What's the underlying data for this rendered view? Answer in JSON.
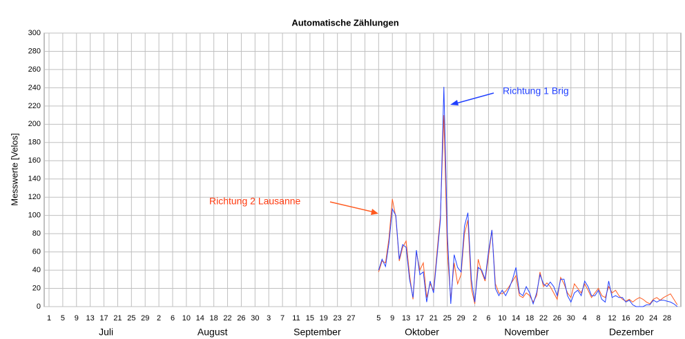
{
  "chart_data": {
    "type": "line",
    "title": "Automatische Zählungen",
    "y_label": "Messwerte [Velos]",
    "months": [
      "Juli",
      "August",
      "September",
      "Oktober",
      "November",
      "Dezember"
    ],
    "categories": [
      "1",
      null,
      null,
      null,
      "5",
      null,
      null,
      null,
      "9",
      null,
      null,
      null,
      "13",
      null,
      null,
      null,
      "17",
      null,
      null,
      null,
      "21",
      null,
      null,
      null,
      "25",
      null,
      null,
      null,
      "29",
      null,
      null,
      null,
      "2",
      null,
      null,
      null,
      "6",
      null,
      null,
      null,
      "10",
      null,
      null,
      null,
      "14",
      null,
      null,
      null,
      "18",
      null,
      null,
      null,
      "22",
      null,
      null,
      null,
      "26",
      null,
      null,
      null,
      "30",
      null,
      null,
      null,
      "3",
      null,
      null,
      null,
      "7",
      null,
      null,
      null,
      "11",
      null,
      null,
      null,
      "15",
      null,
      null,
      null,
      "19",
      null,
      null,
      null,
      "23",
      null,
      null,
      null,
      "27",
      null,
      null,
      null,
      null,
      null,
      null,
      null,
      "5",
      null,
      null,
      null,
      "9",
      null,
      null,
      null,
      "13",
      null,
      null,
      null,
      "17",
      null,
      null,
      null,
      "21",
      null,
      null,
      null,
      "25",
      null,
      null,
      null,
      "29",
      null,
      null,
      null,
      "2",
      null,
      null,
      null,
      "6",
      null,
      null,
      null,
      "10",
      null,
      null,
      null,
      "14",
      null,
      null,
      null,
      "18",
      null,
      null,
      null,
      "22",
      null,
      null,
      null,
      "26",
      null,
      null,
      null,
      "30",
      null,
      null,
      null,
      "4",
      null,
      null,
      null,
      "8",
      null,
      null,
      null,
      "12",
      null,
      null,
      null,
      "16",
      null,
      null,
      null,
      "20",
      null,
      null,
      null,
      "24",
      null,
      null,
      null,
      "28",
      null,
      null,
      null
    ],
    "series": [
      {
        "name": "Richtung 1 Brig",
        "color": "#1f3fff",
        "values": [
          null,
          null,
          null,
          null,
          null,
          null,
          null,
          null,
          null,
          null,
          null,
          null,
          null,
          null,
          null,
          null,
          null,
          null,
          null,
          null,
          null,
          null,
          null,
          null,
          null,
          null,
          null,
          null,
          null,
          null,
          null,
          null,
          null,
          null,
          null,
          null,
          null,
          null,
          null,
          null,
          null,
          null,
          null,
          null,
          null,
          null,
          null,
          null,
          null,
          null,
          null,
          null,
          null,
          null,
          null,
          null,
          null,
          null,
          null,
          null,
          null,
          null,
          null,
          null,
          null,
          null,
          null,
          null,
          null,
          null,
          null,
          null,
          null,
          null,
          null,
          null,
          null,
          null,
          null,
          null,
          null,
          null,
          null,
          null,
          null,
          null,
          null,
          null,
          null,
          null,
          null,
          null,
          null,
          null,
          null,
          null,
          40,
          52,
          44,
          70,
          107,
          100,
          52,
          68,
          65,
          30,
          10,
          62,
          35,
          38,
          5,
          28,
          15,
          55,
          95,
          241,
          80,
          3,
          57,
          43,
          38,
          88,
          103,
          30,
          5,
          43,
          40,
          30,
          60,
          84,
          20,
          12,
          18,
          12,
          20,
          30,
          43,
          15,
          12,
          22,
          15,
          3,
          15,
          35,
          25,
          22,
          27,
          22,
          12,
          30,
          30,
          12,
          5,
          15,
          18,
          12,
          28,
          22,
          12,
          12,
          18,
          8,
          5,
          28,
          10,
          12,
          10,
          10,
          5,
          7,
          2,
          0,
          0,
          0,
          2,
          2,
          7,
          5,
          7,
          7,
          6,
          5,
          3,
          0
        ]
      },
      {
        "name": "Richtung 2 Lausanne",
        "color": "#ff5a1f",
        "values": [
          null,
          null,
          null,
          null,
          null,
          null,
          null,
          null,
          null,
          null,
          null,
          null,
          null,
          null,
          null,
          null,
          null,
          null,
          null,
          null,
          null,
          null,
          null,
          null,
          null,
          null,
          null,
          null,
          null,
          null,
          null,
          null,
          null,
          null,
          null,
          null,
          null,
          null,
          null,
          null,
          null,
          null,
          null,
          null,
          null,
          null,
          null,
          null,
          null,
          null,
          null,
          null,
          null,
          null,
          null,
          null,
          null,
          null,
          null,
          null,
          null,
          null,
          null,
          null,
          null,
          null,
          null,
          null,
          null,
          null,
          null,
          null,
          null,
          null,
          null,
          null,
          null,
          null,
          null,
          null,
          null,
          null,
          null,
          null,
          null,
          null,
          null,
          null,
          null,
          null,
          null,
          null,
          null,
          null,
          null,
          null,
          38,
          50,
          48,
          75,
          118,
          98,
          50,
          65,
          72,
          35,
          8,
          60,
          40,
          48,
          10,
          25,
          18,
          60,
          100,
          210,
          60,
          8,
          48,
          25,
          35,
          80,
          95,
          20,
          3,
          52,
          38,
          28,
          55,
          84,
          25,
          15,
          14,
          17,
          22,
          28,
          34,
          12,
          10,
          15,
          12,
          5,
          12,
          38,
          22,
          26,
          22,
          15,
          8,
          32,
          25,
          15,
          10,
          25,
          20,
          15,
          25,
          18,
          10,
          15,
          20,
          12,
          10,
          22,
          15,
          18,
          12,
          8,
          6,
          8,
          5,
          8,
          10,
          8,
          5,
          3,
          8,
          10,
          7,
          10,
          12,
          14,
          8,
          2
        ]
      }
    ],
    "ylim": [
      0,
      300
    ],
    "yticks": [
      0,
      20,
      40,
      60,
      80,
      100,
      120,
      140,
      160,
      180,
      200,
      220,
      240,
      260,
      280,
      300
    ],
    "grid": true
  }
}
